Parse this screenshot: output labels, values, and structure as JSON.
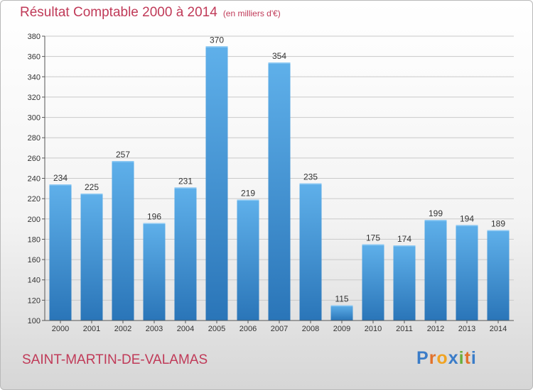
{
  "title": "Résultat Comptable 2000 à 2014",
  "unit_label": "(en milliers d'€)",
  "place_name": "SAINT-MARTIN-DE-VALAMAS",
  "logo": {
    "text": "Proxiti",
    "colors": [
      "#3a7cc8",
      "#e2722b",
      "#f0a322",
      "#3a7cc8",
      "#6aae3a",
      "#e2722b",
      "#3a7cc8"
    ]
  },
  "colors": {
    "title": "#c03a58",
    "bar_top": "#5fb0ea",
    "bar_bottom": "#2a75b8",
    "grid": "#c9c9c9",
    "axis": "#555555"
  },
  "chart_data": {
    "type": "bar",
    "title": "Résultat Comptable 2000 à 2014",
    "subtitle": "(en milliers d'€)",
    "xlabel": "",
    "ylabel": "",
    "categories": [
      "2000",
      "2001",
      "2002",
      "2003",
      "2004",
      "2005",
      "2006",
      "2007",
      "2008",
      "2009",
      "2010",
      "2011",
      "2012",
      "2013",
      "2014"
    ],
    "values": [
      234,
      225,
      257,
      196,
      231,
      370,
      219,
      354,
      235,
      115,
      175,
      174,
      199,
      194,
      189
    ],
    "ylim": [
      100,
      380
    ],
    "yticks": [
      100,
      120,
      140,
      160,
      180,
      200,
      220,
      240,
      260,
      280,
      300,
      320,
      340,
      360,
      380
    ],
    "grid": true,
    "legend": "none"
  }
}
